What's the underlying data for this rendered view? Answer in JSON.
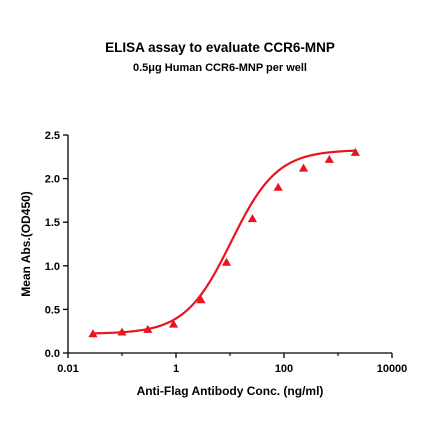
{
  "chart_data": {
    "type": "line",
    "title": "ELISA assay to evaluate CCR6-MNP",
    "subtitle": "0.5μg Human CCR6-MNP per well",
    "xlabel": "Anti-Flag Antibody Conc. (ng/ml)",
    "ylabel": "Mean Abs.(OD450)",
    "x_scale": "log",
    "xlim": [
      0.01,
      10000
    ],
    "ylim": [
      0,
      2.5
    ],
    "x_ticks": [
      0.01,
      1,
      100,
      10000
    ],
    "x_tick_labels": [
      "0.01",
      "1",
      "100",
      "10000"
    ],
    "y_ticks": [
      0,
      0.5,
      1.0,
      1.5,
      2.0,
      2.5
    ],
    "y_tick_labels": [
      "0.0",
      "0.5",
      "1.0",
      "1.5",
      "2.0",
      "2.5"
    ],
    "grid": false,
    "color": "#e8141e",
    "marker": "triangle",
    "series": [
      {
        "x": [
          0.029,
          0.1,
          0.3,
          0.9,
          2.9,
          8.6,
          26,
          78,
          230,
          690,
          2100
        ],
        "y": [
          0.22,
          0.24,
          0.27,
          0.33,
          0.61,
          1.04,
          1.54,
          1.9,
          2.12,
          2.22,
          2.3
        ]
      }
    ],
    "fit": {
      "bottom": 0.22,
      "top": 2.33,
      "ec50": 10.5,
      "hill": 1.02
    }
  }
}
